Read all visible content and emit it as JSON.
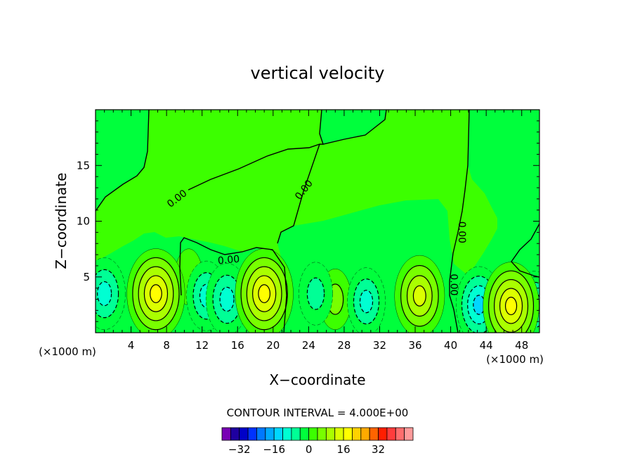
{
  "chart_data": {
    "type": "heatmap",
    "title": "vertical velocity",
    "xlabel": "X−coordinate",
    "ylabel": "Z−coordinate",
    "x_unit_left": "(×1000 m)",
    "x_unit_right": "(×1000 m)",
    "xlim": [
      0,
      50
    ],
    "ylim": [
      0,
      20
    ],
    "x_ticks": [
      4,
      8,
      12,
      16,
      20,
      24,
      28,
      32,
      36,
      40,
      44,
      48
    ],
    "y_ticks": [
      5,
      10,
      15
    ],
    "contour_interval_text": "CONTOUR INTERVAL = 4.000E+00",
    "contour_labels": [
      {
        "text": "0.00",
        "x": 9.2,
        "y": 12.0,
        "angle": -38
      },
      {
        "text": "0.00",
        "x": 23.5,
        "y": 12.8,
        "angle": -52
      },
      {
        "text": "0.00",
        "x": 15.0,
        "y": 6.5,
        "angle": -5
      },
      {
        "text": "0.00",
        "x": 41.2,
        "y": 9.0,
        "angle": 90
      },
      {
        "text": "0.00",
        "x": 40.3,
        "y": 4.3,
        "angle": 90
      }
    ],
    "colorbar": {
      "colors": [
        "#7800b4",
        "#1e00a0",
        "#0000c8",
        "#0032ff",
        "#0078ff",
        "#00aaff",
        "#00d7ff",
        "#00ffd2",
        "#00ff96",
        "#00ff3c",
        "#3cff00",
        "#78ff00",
        "#aaff00",
        "#dcff00",
        "#ffff00",
        "#ffd200",
        "#ffaa00",
        "#ff6400",
        "#ff1e00",
        "#ff3c3c",
        "#ff6e6e",
        "#ff9b9b"
      ],
      "tick_labels": [
        "−32",
        "−16",
        "0",
        "16",
        "32"
      ],
      "tick_values": [
        -32,
        -16,
        0,
        16,
        32
      ],
      "min": -40,
      "max": 48
    },
    "field": {
      "background": 0,
      "features": [
        {
          "x": 6.8,
          "y": 3.5,
          "max": 18
        },
        {
          "x": 19.0,
          "y": 3.5,
          "max": 18
        },
        {
          "x": 36.5,
          "y": 3.3,
          "max": 14
        },
        {
          "x": 46.8,
          "y": 2.4,
          "max": 17
        },
        {
          "x": 27.0,
          "y": 3.0,
          "max": 5
        },
        {
          "x": 10.5,
          "y": 5.0,
          "max": 3
        },
        {
          "x": 1.0,
          "y": 3.5,
          "min": -10
        },
        {
          "x": 12.5,
          "y": 3.3,
          "min": -9
        },
        {
          "x": 14.8,
          "y": 3.0,
          "min": -10
        },
        {
          "x": 24.8,
          "y": 3.5,
          "min": -6
        },
        {
          "x": 30.5,
          "y": 2.8,
          "min": -8
        },
        {
          "x": 43.2,
          "y": 2.5,
          "min": -12
        },
        {
          "x": 49.5,
          "y": 2.5,
          "min": -8
        }
      ]
    }
  }
}
